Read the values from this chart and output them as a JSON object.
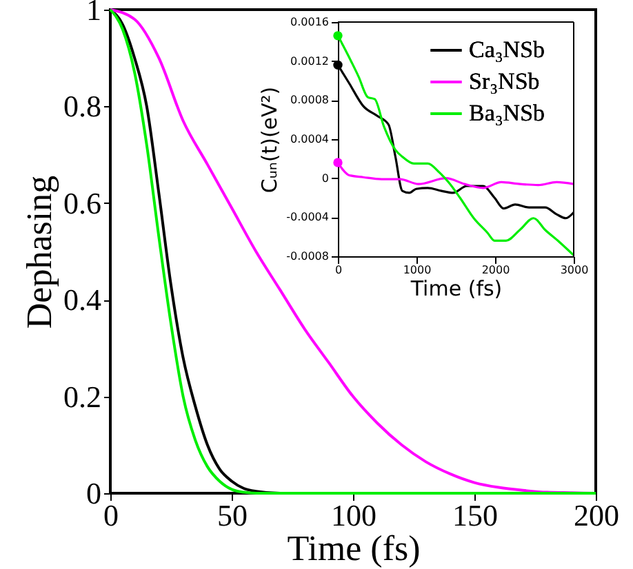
{
  "chart_data": [
    {
      "type": "line",
      "xlabel": "Time (fs)",
      "ylabel": "Dephasing",
      "xlim": [
        0,
        200
      ],
      "ylim": [
        0,
        1
      ],
      "xticks": [
        0,
        50,
        100,
        150,
        200
      ],
      "yticks": [
        0,
        0.2,
        0.4,
        0.6,
        0.8,
        1
      ],
      "grid": false,
      "legend": false,
      "marker": "none",
      "line_style": "solid",
      "series": [
        {
          "color": "#000000",
          "x": [
            0,
            5,
            10,
            15,
            20,
            25,
            30,
            35,
            40,
            45,
            50,
            55,
            60,
            70,
            200
          ],
          "values": [
            1,
            0.97,
            0.9,
            0.8,
            0.62,
            0.43,
            0.28,
            0.18,
            0.1,
            0.05,
            0.025,
            0.01,
            0.004,
            0,
            0
          ]
        },
        {
          "color": "#ff00ff",
          "x": [
            0,
            10,
            20,
            30,
            40,
            50,
            60,
            70,
            80,
            90,
            100,
            110,
            120,
            130,
            140,
            150,
            160,
            170,
            180,
            190,
            200
          ],
          "values": [
            1,
            0.98,
            0.9,
            0.77,
            0.68,
            0.59,
            0.5,
            0.42,
            0.34,
            0.27,
            0.2,
            0.145,
            0.1,
            0.065,
            0.04,
            0.022,
            0.012,
            0.006,
            0.002,
            0.001,
            0
          ]
        },
        {
          "color": "#00ee00",
          "x": [
            0,
            5,
            10,
            15,
            20,
            25,
            30,
            35,
            40,
            45,
            50,
            55,
            60,
            200
          ],
          "values": [
            1,
            0.96,
            0.87,
            0.72,
            0.53,
            0.35,
            0.2,
            0.11,
            0.055,
            0.025,
            0.008,
            0.002,
            0,
            0
          ]
        }
      ]
    },
    {
      "type": "line",
      "xlabel": "Time (fs)",
      "ylabel": "Cᵤₙ(t)(eV²)",
      "xlim": [
        0,
        3000
      ],
      "ylim": [
        -0.0008,
        0.0016
      ],
      "xticks": [
        0,
        1000,
        2000,
        3000
      ],
      "yticks": [
        -0.0008,
        -0.0004,
        0,
        0.0004,
        0.0008,
        0.0012,
        0.0016
      ],
      "grid": false,
      "legend": "top right",
      "marker": "none",
      "line_style": "solid",
      "series": [
        {
          "name": "Ca₃NSb",
          "color": "#000000",
          "x": [
            0,
            146,
            322,
            498,
            644,
            732,
            820,
            908,
            996,
            1143,
            1318,
            1465,
            1641,
            1846,
            1992,
            2109,
            2256,
            2432,
            2637,
            2783,
            2900,
            3000
          ],
          "values": [
            0.00116,
            0.00097,
            0.00074,
            0.00064,
            0.00055,
            0.00022,
            -0.00013,
            -0.00015,
            -0.00011,
            -0.0001,
            -0.00013,
            -0.00015,
            -8e-05,
            -8e-05,
            -0.0002,
            -0.00031,
            -0.00027,
            -0.0003,
            -0.0003,
            -0.00037,
            -0.00041,
            -0.00035
          ]
        },
        {
          "name": "Sr₃NSb",
          "color": "#ff00ff",
          "x": [
            0,
            146,
            322,
            557,
            791,
            1025,
            1377,
            1611,
            1846,
            2080,
            2315,
            2549,
            2783,
            3000
          ],
          "values": [
            0.00016,
            3e-05,
            1e-05,
            -1e-05,
            -1e-05,
            -6e-05,
            0,
            -6e-05,
            -0.0001,
            -4e-05,
            -6e-05,
            -7e-05,
            -4e-05,
            -6e-05
          ]
        },
        {
          "name": "Ba₃NSb",
          "color": "#00ee00",
          "x": [
            0,
            117,
            264,
            381,
            469,
            586,
            732,
            820,
            967,
            1143,
            1289,
            1406,
            1553,
            1729,
            1904,
            1992,
            2139,
            2315,
            2490,
            2637,
            2812,
            3000
          ],
          "values": [
            0.00146,
            0.00128,
            0.00104,
            0.00083,
            0.00081,
            0.00053,
            0.00029,
            0.00022,
            0.00015,
            0.00015,
            6e-05,
            -4e-05,
            -0.0002,
            -0.00041,
            -0.00056,
            -0.00064,
            -0.00064,
            -0.00053,
            -0.00041,
            -0.00053,
            -0.00065,
            -0.00079
          ]
        },
        {
          "type": "scatter",
          "marker": "circle",
          "color": "#000000",
          "x": [
            0
          ],
          "values": [
            0.00116
          ]
        },
        {
          "type": "scatter",
          "marker": "circle",
          "color": "#ff00ff",
          "x": [
            0
          ],
          "values": [
            0.00016
          ]
        },
        {
          "type": "scatter",
          "marker": "circle",
          "color": "#00ee00",
          "x": [
            0
          ],
          "values": [
            0.00146
          ]
        }
      ]
    }
  ]
}
